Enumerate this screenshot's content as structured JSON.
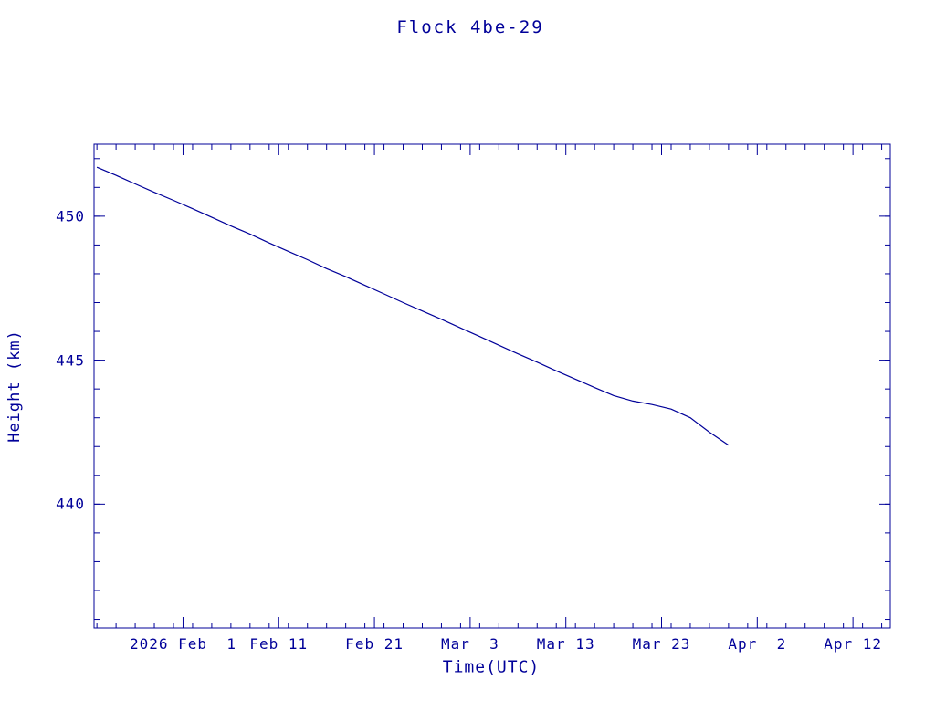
{
  "accent_color": "#000099",
  "chart_data": {
    "type": "line",
    "title": "Flock 4be-29",
    "xlabel": "Time(UTC)",
    "ylabel": "Height (km)",
    "line_color": "#000099",
    "grid": false,
    "legend": "none",
    "x_unit": "days since 2026 Jan 23 00:00 UTC",
    "x_range": [
      -0.3,
      82.9
    ],
    "y_range": [
      435.7,
      452.5
    ],
    "x_ticks": {
      "positions": [
        9,
        19,
        29,
        39,
        49,
        59,
        69,
        79
      ],
      "labels": [
        "2026 Feb  1",
        "Feb 11",
        "Feb 21",
        "Mar  3",
        "Mar 13",
        "Mar 23",
        "Apr  2",
        "Apr 12"
      ],
      "minor_step": 2
    },
    "y_ticks": {
      "positions": [
        440,
        445,
        450
      ],
      "labels": [
        "440",
        "445",
        "450"
      ],
      "minor_step": 1
    },
    "series": [
      {
        "name": "satellite-height-km",
        "points": [
          [
            0,
            451.7
          ],
          [
            2,
            451.42
          ],
          [
            4,
            451.12
          ],
          [
            6,
            450.83
          ],
          [
            8,
            450.55
          ],
          [
            10,
            450.26
          ],
          [
            12,
            449.96
          ],
          [
            14,
            449.66
          ],
          [
            16,
            449.38
          ],
          [
            18,
            449.07
          ],
          [
            20,
            448.78
          ],
          [
            22,
            448.49
          ],
          [
            24,
            448.18
          ],
          [
            26,
            447.9
          ],
          [
            28,
            447.6
          ],
          [
            30,
            447.3
          ],
          [
            32,
            447.0
          ],
          [
            34,
            446.71
          ],
          [
            36,
            446.42
          ],
          [
            38,
            446.12
          ],
          [
            40,
            445.82
          ],
          [
            42,
            445.52
          ],
          [
            44,
            445.22
          ],
          [
            46,
            444.93
          ],
          [
            48,
            444.63
          ],
          [
            50,
            444.34
          ],
          [
            52,
            444.05
          ],
          [
            54,
            443.77
          ],
          [
            56,
            443.58
          ],
          [
            58,
            443.46
          ],
          [
            60,
            443.3
          ],
          [
            62,
            443.0
          ],
          [
            64,
            442.5
          ],
          [
            66,
            442.05
          ]
        ]
      }
    ]
  }
}
